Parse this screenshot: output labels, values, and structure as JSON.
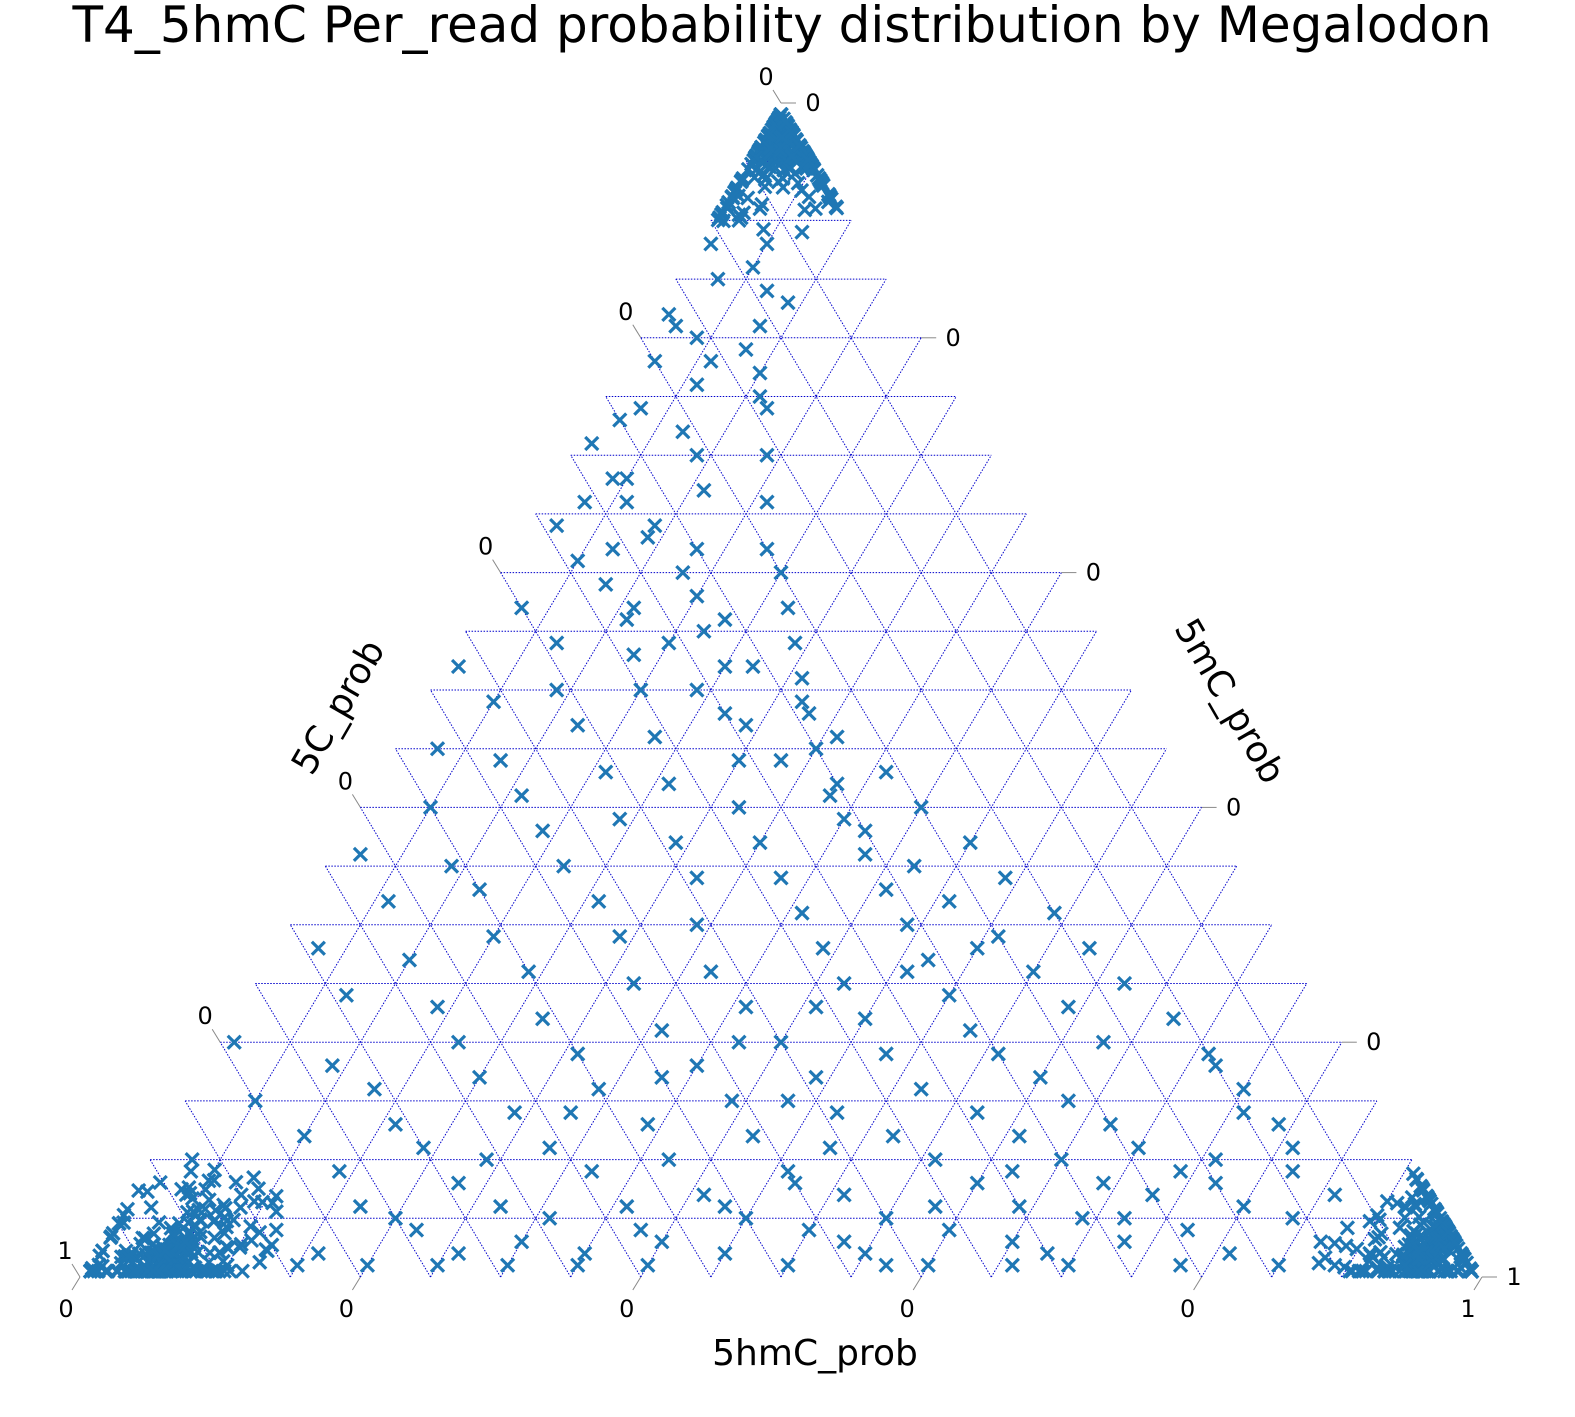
{
  "chart_data": {
    "type": "scatter",
    "subtype": "ternary",
    "title": "T4_5hmC Per_read probability distribution by Megalodon",
    "axes": {
      "bottom": {
        "label": "5hmC_prob",
        "tick_labels": [
          "0",
          "0",
          "0",
          "0",
          "0",
          "1"
        ]
      },
      "left": {
        "label": "5C_prob",
        "tick_labels": [
          "1",
          "0",
          "0",
          "0",
          "0",
          "0"
        ]
      },
      "right": {
        "label": "5mC_prob",
        "tick_labels": [
          "0",
          "0",
          "0",
          "0",
          "0",
          "1"
        ]
      }
    },
    "grid": true,
    "grid_color": "#0000cc",
    "marker": "x",
    "marker_color": "#1f77b4",
    "corner_clusters": [
      {
        "5hmC_prob": 0.02,
        "5mC_prob": 0.96,
        "5C_prob": 0.02,
        "count": 260
      },
      {
        "5hmC_prob": 0.05,
        "5mC_prob": 0.02,
        "5C_prob": 0.93,
        "count": 280
      },
      {
        "5hmC_prob": 0.95,
        "5mC_prob": 0.02,
        "5C_prob": 0.03,
        "count": 270
      }
    ],
    "points_5hmC_5mC": [
      [
        0.02,
        0.9
      ],
      [
        0.05,
        0.88
      ],
      [
        0.03,
        0.85
      ],
      [
        0.07,
        0.84
      ],
      [
        0.01,
        0.82
      ],
      [
        0.04,
        0.8
      ],
      [
        0.08,
        0.79
      ],
      [
        0.02,
        0.78
      ],
      [
        0.1,
        0.77
      ],
      [
        0.06,
        0.76
      ],
      [
        0.03,
        0.74
      ],
      [
        0.12,
        0.74
      ],
      [
        0.07,
        0.72
      ],
      [
        0.01,
        0.71
      ],
      [
        0.09,
        0.7
      ],
      [
        0.14,
        0.7
      ],
      [
        0.04,
        0.68
      ],
      [
        0.11,
        0.67
      ],
      [
        0.06,
        0.66
      ],
      [
        0.16,
        0.66
      ],
      [
        0.02,
        0.64
      ],
      [
        0.09,
        0.63
      ],
      [
        0.13,
        0.62
      ],
      [
        0.18,
        0.62
      ],
      [
        0.05,
        0.61
      ],
      [
        0.2,
        0.6
      ],
      [
        0.08,
        0.59
      ],
      [
        0.15,
        0.58
      ],
      [
        0.03,
        0.57
      ],
      [
        0.22,
        0.57
      ],
      [
        0.11,
        0.56
      ],
      [
        0.17,
        0.55
      ],
      [
        0.07,
        0.54
      ],
      [
        0.24,
        0.54
      ],
      [
        0.13,
        0.53
      ],
      [
        0.01,
        0.52
      ],
      [
        0.2,
        0.52
      ],
      [
        0.26,
        0.51
      ],
      [
        0.09,
        0.5
      ],
      [
        0.15,
        0.5
      ],
      [
        0.05,
        0.49
      ],
      [
        0.22,
        0.48
      ],
      [
        0.28,
        0.48
      ],
      [
        0.12,
        0.47
      ],
      [
        0.18,
        0.46
      ],
      [
        0.03,
        0.45
      ],
      [
        0.3,
        0.45
      ],
      [
        0.25,
        0.44
      ],
      [
        0.08,
        0.44
      ],
      [
        0.16,
        0.43
      ],
      [
        0.21,
        0.42
      ],
      [
        0.33,
        0.42
      ],
      [
        0.11,
        0.41
      ],
      [
        0.27,
        0.4
      ],
      [
        0.05,
        0.4
      ],
      [
        0.35,
        0.39
      ],
      [
        0.19,
        0.39
      ],
      [
        0.14,
        0.38
      ],
      [
        0.3,
        0.37
      ],
      [
        0.24,
        0.37
      ],
      [
        0.02,
        0.36
      ],
      [
        0.38,
        0.36
      ],
      [
        0.09,
        0.35
      ],
      [
        0.17,
        0.35
      ],
      [
        0.33,
        0.34
      ],
      [
        0.27,
        0.34
      ],
      [
        0.41,
        0.33
      ],
      [
        0.12,
        0.33
      ],
      [
        0.21,
        0.32
      ],
      [
        0.06,
        0.32
      ],
      [
        0.36,
        0.31
      ],
      [
        0.44,
        0.3
      ],
      [
        0.29,
        0.3
      ],
      [
        0.15,
        0.29
      ],
      [
        0.24,
        0.29
      ],
      [
        0.39,
        0.28
      ],
      [
        0.03,
        0.28
      ],
      [
        0.47,
        0.27
      ],
      [
        0.1,
        0.27
      ],
      [
        0.32,
        0.26
      ],
      [
        0.19,
        0.26
      ],
      [
        0.42,
        0.25
      ],
      [
        0.27,
        0.25
      ],
      [
        0.5,
        0.24
      ],
      [
        0.07,
        0.24
      ],
      [
        0.36,
        0.23
      ],
      [
        0.14,
        0.23
      ],
      [
        0.45,
        0.22
      ],
      [
        0.22,
        0.22
      ],
      [
        0.53,
        0.21
      ],
      [
        0.31,
        0.21
      ],
      [
        0.01,
        0.2
      ],
      [
        0.4,
        0.2
      ],
      [
        0.17,
        0.2
      ],
      [
        0.56,
        0.19
      ],
      [
        0.48,
        0.19
      ],
      [
        0.26,
        0.19
      ],
      [
        0.09,
        0.18
      ],
      [
        0.35,
        0.18
      ],
      [
        0.6,
        0.17
      ],
      [
        0.44,
        0.17
      ],
      [
        0.2,
        0.17
      ],
      [
        0.52,
        0.16
      ],
      [
        0.13,
        0.16
      ],
      [
        0.29,
        0.16
      ],
      [
        0.63,
        0.15
      ],
      [
        0.39,
        0.15
      ],
      [
        0.05,
        0.15
      ],
      [
        0.57,
        0.14
      ],
      [
        0.47,
        0.14
      ],
      [
        0.24,
        0.14
      ],
      [
        0.16,
        0.13
      ],
      [
        0.67,
        0.13
      ],
      [
        0.34,
        0.13
      ],
      [
        0.61,
        0.12
      ],
      [
        0.42,
        0.12
      ],
      [
        0.1,
        0.12
      ],
      [
        0.52,
        0.12
      ],
      [
        0.7,
        0.11
      ],
      [
        0.28,
        0.11
      ],
      [
        0.19,
        0.11
      ],
      [
        0.65,
        0.1
      ],
      [
        0.37,
        0.1
      ],
      [
        0.56,
        0.1
      ],
      [
        0.03,
        0.1
      ],
      [
        0.74,
        0.09
      ],
      [
        0.46,
        0.09
      ],
      [
        0.14,
        0.09
      ],
      [
        0.32,
        0.09
      ],
      [
        0.69,
        0.08
      ],
      [
        0.6,
        0.08
      ],
      [
        0.23,
        0.08
      ],
      [
        0.77,
        0.08
      ],
      [
        0.41,
        0.07
      ],
      [
        0.51,
        0.07
      ],
      [
        0.08,
        0.07
      ],
      [
        0.73,
        0.07
      ],
      [
        0.64,
        0.06
      ],
      [
        0.27,
        0.06
      ],
      [
        0.36,
        0.06
      ],
      [
        0.8,
        0.06
      ],
      [
        0.17,
        0.06
      ],
      [
        0.55,
        0.05
      ],
      [
        0.45,
        0.05
      ],
      [
        0.84,
        0.05
      ],
      [
        0.69,
        0.05
      ],
      [
        0.31,
        0.05
      ],
      [
        0.12,
        0.04
      ],
      [
        0.77,
        0.04
      ],
      [
        0.6,
        0.04
      ],
      [
        0.22,
        0.04
      ],
      [
        0.5,
        0.04
      ],
      [
        0.87,
        0.03
      ],
      [
        0.4,
        0.03
      ],
      [
        0.73,
        0.03
      ],
      [
        0.06,
        0.03
      ],
      [
        0.65,
        0.03
      ],
      [
        0.35,
        0.02
      ],
      [
        0.81,
        0.02
      ],
      [
        0.26,
        0.02
      ],
      [
        0.55,
        0.02
      ],
      [
        0.91,
        0.02
      ],
      [
        0.16,
        0.02
      ],
      [
        0.45,
        0.02
      ],
      [
        0.7,
        0.01
      ],
      [
        0.85,
        0.01
      ],
      [
        0.3,
        0.01
      ],
      [
        0.6,
        0.01
      ],
      [
        0.1,
        0.01
      ],
      [
        0.94,
        0.01
      ],
      [
        0.2,
        0.01
      ],
      [
        0.5,
        0.01
      ],
      [
        0.78,
        0.01
      ],
      [
        0.4,
        0.01
      ],
      [
        0.66,
        0.01
      ],
      [
        0.89,
        0.01
      ],
      [
        0.25,
        0.01
      ],
      [
        0.57,
        0.01
      ],
      [
        0.35,
        0.01
      ],
      [
        0.15,
        0.01
      ],
      [
        0.82,
        0.09
      ],
      [
        0.79,
        0.13
      ],
      [
        0.75,
        0.16
      ],
      [
        0.71,
        0.19
      ],
      [
        0.67,
        0.22
      ],
      [
        0.62,
        0.25
      ],
      [
        0.58,
        0.28
      ],
      [
        0.54,
        0.31
      ],
      [
        0.49,
        0.34
      ],
      [
        0.45,
        0.37
      ],
      [
        0.4,
        0.4
      ],
      [
        0.36,
        0.43
      ],
      [
        0.31,
        0.46
      ],
      [
        0.27,
        0.49
      ],
      [
        0.22,
        0.52
      ],
      [
        0.18,
        0.56
      ],
      [
        0.13,
        0.6
      ],
      [
        0.09,
        0.64
      ],
      [
        0.05,
        0.68
      ],
      [
        0.02,
        0.73
      ],
      [
        0.86,
        0.07
      ],
      [
        0.81,
        0.11
      ],
      [
        0.76,
        0.14
      ],
      [
        0.72,
        0.18
      ],
      [
        0.63,
        0.2
      ],
      [
        0.59,
        0.23
      ],
      [
        0.55,
        0.26
      ],
      [
        0.51,
        0.29
      ],
      [
        0.46,
        0.32
      ],
      [
        0.42,
        0.35
      ],
      [
        0.37,
        0.38
      ],
      [
        0.33,
        0.41
      ],
      [
        0.28,
        0.44
      ],
      [
        0.24,
        0.47
      ],
      [
        0.19,
        0.5
      ],
      [
        0.15,
        0.54
      ],
      [
        0.11,
        0.57
      ],
      [
        0.07,
        0.62
      ],
      [
        0.03,
        0.66
      ],
      [
        0.06,
        0.78
      ],
      [
        0.04,
        0.94
      ],
      [
        0.06,
        0.92
      ],
      [
        0.03,
        0.91
      ],
      [
        0.07,
        0.89
      ],
      [
        0.01,
        0.88
      ],
      [
        0.05,
        0.86
      ],
      [
        0.09,
        0.83
      ],
      [
        0.02,
        0.81
      ],
      [
        0.08,
        0.81
      ],
      [
        0.11,
        0.75
      ],
      [
        0.3,
        0.03
      ],
      [
        0.38,
        0.04
      ],
      [
        0.43,
        0.06
      ],
      [
        0.47,
        0.08
      ],
      [
        0.53,
        0.03
      ],
      [
        0.58,
        0.06
      ],
      [
        0.62,
        0.09
      ],
      [
        0.68,
        0.02
      ],
      [
        0.72,
        0.05
      ],
      [
        0.76,
        0.1
      ],
      [
        0.2,
        0.05
      ],
      [
        0.24,
        0.1
      ],
      [
        0.28,
        0.14
      ],
      [
        0.33,
        0.17
      ],
      [
        0.37,
        0.2
      ],
      [
        0.41,
        0.23
      ],
      [
        0.46,
        0.26
      ],
      [
        0.5,
        0.28
      ],
      [
        0.43,
        0.15
      ],
      [
        0.48,
        0.11
      ]
    ]
  }
}
